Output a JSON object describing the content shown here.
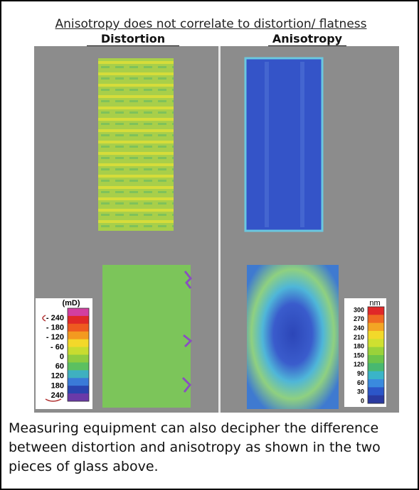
{
  "header": {
    "title": "Anisotropy does not correlate to distortion/ flatness"
  },
  "panels": [
    {
      "label": "Distortion"
    },
    {
      "label": "Anisotropy"
    }
  ],
  "legends": [
    {
      "unit": "(mD)",
      "labels": [
        "- 240",
        "- 180",
        "- 120",
        "- 60",
        "0",
        "60",
        "120",
        "180",
        "240"
      ]
    },
    {
      "unit": "nm",
      "labels": [
        "300",
        "270",
        "240",
        "210",
        "180",
        "150",
        "120",
        "90",
        "60",
        "30",
        "0"
      ]
    }
  ],
  "caption": "Measuring equipment can also decipher the difference between distortion and anisotropy as shown in the two pieces of glass above."
}
